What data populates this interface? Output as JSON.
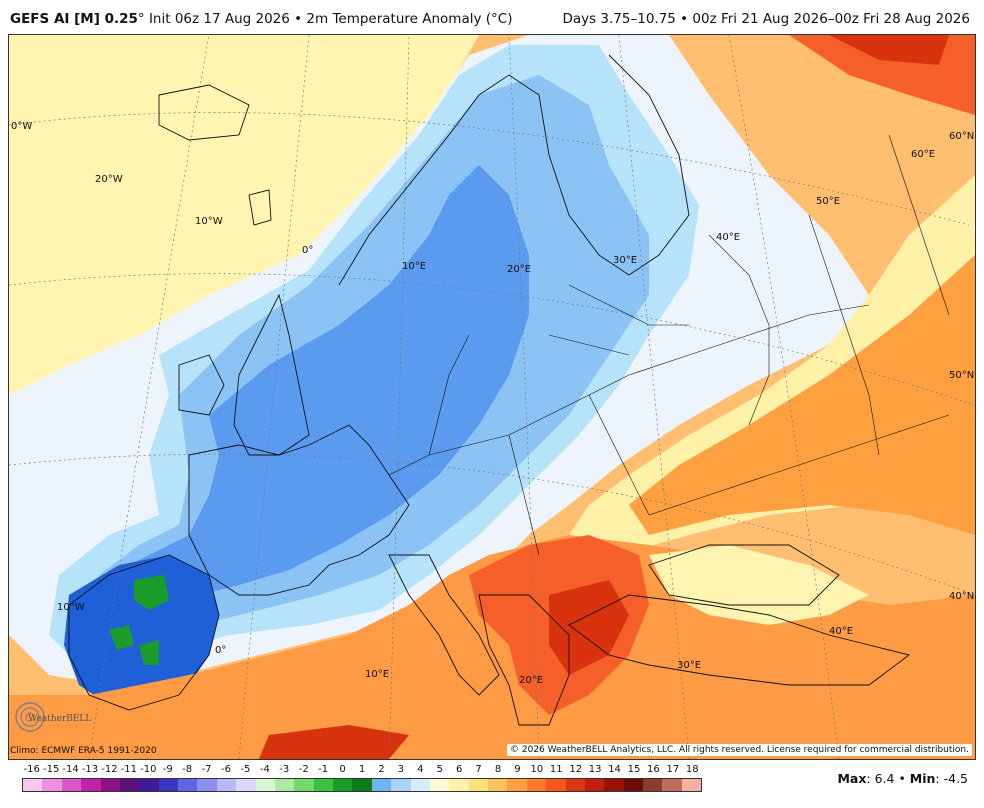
{
  "header": {
    "model": "GEFS AI [M] 0.25",
    "model_suffix": "°",
    "init": "Init 06z 17 Aug 2026",
    "sep": "•",
    "variable": "2m Temperature Anomaly (°C)",
    "period": "Days 3.75–10.75 • 00z Fri 21 Aug 2026–00z Fri 28 Aug 2026"
  },
  "footer": {
    "climo": "Climo: ECMWF ERA-5 1991-2020",
    "copyright": "© 2026 WeatherBELL Analytics, LLC. All rights reserved. License required for commercial distribution.",
    "max_label": "Max",
    "max_value": ": 6.4",
    "min_sep": " • ",
    "min_label": "Min",
    "min_value": ": -4.5"
  },
  "logo": {
    "text": "WeatherBELL"
  },
  "colorbar": {
    "labels": [
      "-16",
      "-15",
      "-14",
      "-13",
      "-12",
      "-11",
      "-10",
      "-9",
      "-8",
      "-7",
      "-6",
      "-5",
      "-4",
      "-3",
      "-2",
      "-1",
      "0",
      "1",
      "2",
      "3",
      "4",
      "5",
      "6",
      "7",
      "8",
      "9",
      "10",
      "11",
      "12",
      "13",
      "14",
      "15",
      "16",
      "17",
      "18"
    ],
    "colors": [
      "#f7c9ef",
      "#ef8fe0",
      "#df55cc",
      "#c023a8",
      "#8e1281",
      "#60107c",
      "#3e1b97",
      "#3a38c2",
      "#5b66e0",
      "#8d8ff0",
      "#b7b8f6",
      "#d8d8fb",
      "#d8f7d0",
      "#a8eca0",
      "#72da6e",
      "#3cc041",
      "#179d25",
      "#0f7a1e",
      "#6fb3f0",
      "#a7d4f7",
      "#d6ecfb",
      "#fffbd6",
      "#fff1a8",
      "#ffdf7a",
      "#ffc25c",
      "#ffa040",
      "#ff7d2a",
      "#f6561c",
      "#e03414",
      "#c01f10",
      "#981208",
      "#6e0c06",
      "#8a3d2d",
      "#c06d5a",
      "#f2b1a3"
    ]
  },
  "map_labels": {
    "lon_0": "0°W",
    "lon_20w": "20°W",
    "lon_10w": "10°W",
    "lon_0b": "0°",
    "lon_10e": "10°E",
    "lon_20e": "20°E",
    "lon_30e": "30°E",
    "lon_40e": "40°E",
    "lon_50e": "50°E",
    "lon_60e": "60°E",
    "lat_60n": "60°N",
    "lat_50n": "50°N",
    "lat_40n": "40°N",
    "lon_10w_b": "10°W",
    "lon_0_c": "0°",
    "lon_10e_b": "10°E",
    "lon_20e_b": "20°E",
    "lon_30e_b": "30°E",
    "lon_40e_b": "40°E"
  },
  "colors": {
    "cold_deep": "#1f5fd8",
    "cold": "#5b9bef",
    "cool": "#8cc3f5",
    "cool_light": "#b6e3f9",
    "near_zero": "#eef4fb",
    "warm_light": "#fff6b8",
    "warm": "#ffc06a",
    "warm_mid": "#ff9a45",
    "hot": "#f5602a",
    "hot_deep": "#d8320e",
    "green_pocket": "#1a9c2a"
  }
}
